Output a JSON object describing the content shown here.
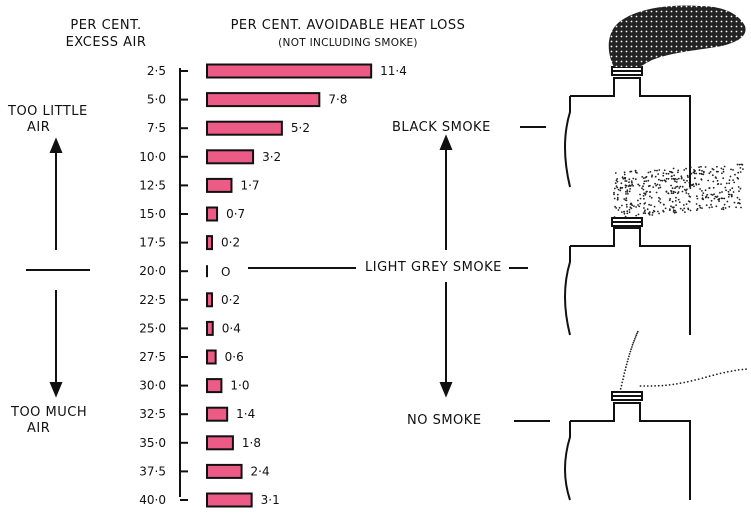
{
  "header": {
    "left_line1": "PER CENT.",
    "left_line2": "EXCESS AIR",
    "right_line1": "PER CENT. AVOIDABLE HEAT LOSS",
    "right_line2": "(NOT INCLUDING SMOKE)"
  },
  "side": {
    "too_little_line1": "TOO LITTLE",
    "too_little_line2": "AIR",
    "too_much_line1": "TOO MUCH",
    "too_much_line2": "AIR"
  },
  "smoke": {
    "black": "BLACK SMOKE",
    "light_grey": "LIGHT GREY SMOKE",
    "none": "NO SMOKE"
  },
  "colors": {
    "bar_fill": "#ec5a86",
    "ink": "#111111"
  },
  "chart_data": {
    "type": "bar",
    "orientation": "horizontal",
    "categories": [
      "2·5",
      "5·0",
      "7·5",
      "10·0",
      "12·5",
      "15·0",
      "17·5",
      "20·0",
      "22·5",
      "25·0",
      "27·5",
      "30·0",
      "32·5",
      "35·0",
      "37·5",
      "40·0"
    ],
    "values": [
      11.4,
      7.8,
      5.2,
      3.2,
      1.7,
      0.7,
      0.2,
      0,
      0.2,
      0.4,
      0.6,
      1.0,
      1.4,
      1.8,
      2.4,
      3.1
    ],
    "value_labels": [
      "11·4",
      "7·8",
      "5·2",
      "3·2",
      "1·7",
      "0·7",
      "0·2",
      "O",
      "0·2",
      "0·4",
      "0·6",
      "1·0",
      "1·4",
      "1·8",
      "2·4",
      "3·1"
    ]
  }
}
